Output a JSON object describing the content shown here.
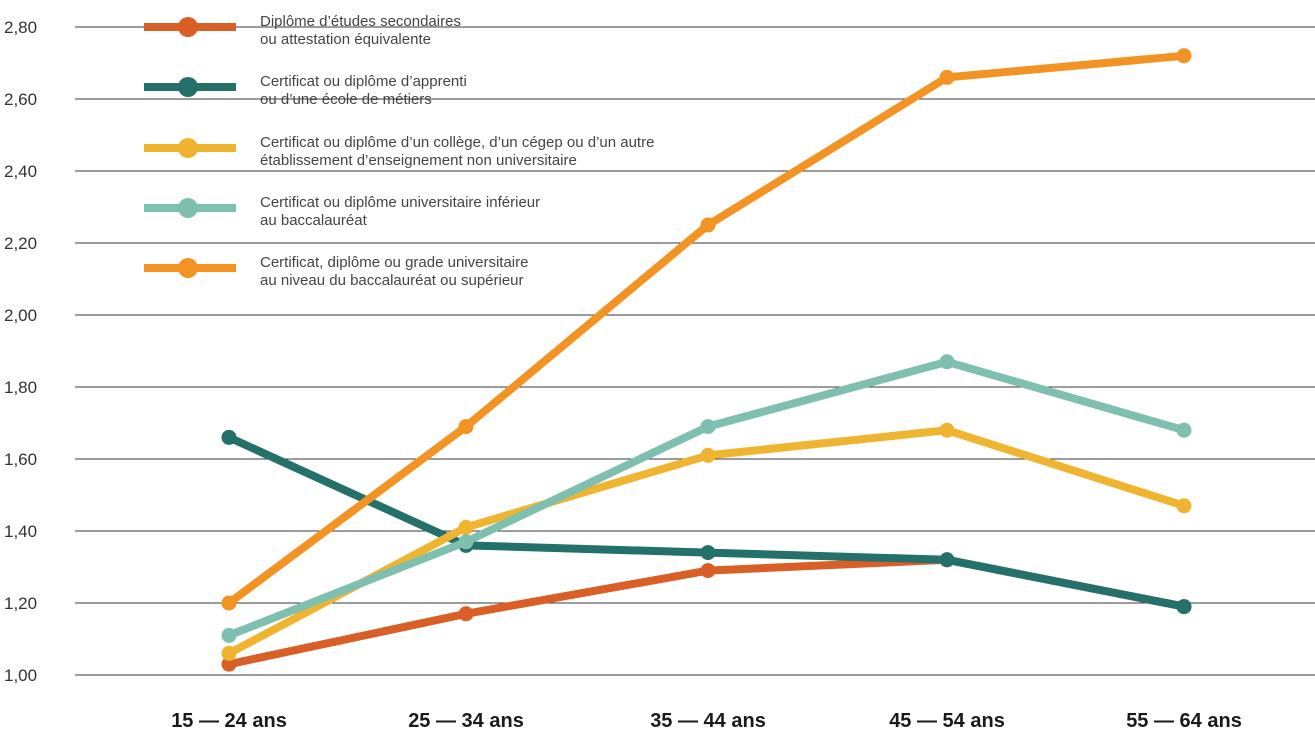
{
  "chart_data": {
    "type": "line",
    "title": "",
    "xlabel": "",
    "ylabel": "",
    "categories": [
      "15 — 24 ans",
      "25 — 34 ans",
      "35 — 44 ans",
      "45 — 54 ans",
      "55 — 64 ans"
    ],
    "y_ticks": [
      "1,00",
      "1,20",
      "1,40",
      "1,60",
      "1,80",
      "2,00",
      "2,20",
      "2,40",
      "2,60",
      "2,80"
    ],
    "ylim": [
      1.0,
      2.8
    ],
    "grid": "horizontal",
    "legend_position": "top-left",
    "series": [
      {
        "name_lines": [
          "Diplôme d’études secondaires",
          "ou attestation équivalente"
        ],
        "color": "#d95f27",
        "values": [
          1.03,
          1.17,
          1.29,
          1.32,
          1.19
        ]
      },
      {
        "name_lines": [
          "Certificat ou diplôme d’apprenti",
          "ou d’une école de métiers"
        ],
        "color": "#24706a",
        "values": [
          1.66,
          1.36,
          1.34,
          1.32,
          1.19
        ]
      },
      {
        "name_lines": [
          "Certificat ou diplôme d’un collège, d’un cégep ou d’un autre",
          "établissement d’enseignement non universitaire"
        ],
        "color": "#f0b530",
        "values": [
          1.06,
          1.41,
          1.61,
          1.68,
          1.47
        ]
      },
      {
        "name_lines": [
          "Certificat ou diplôme universitaire inférieur",
          "au baccalauréat"
        ],
        "color": "#7fbfb0",
        "values": [
          1.11,
          1.37,
          1.69,
          1.87,
          1.68
        ]
      },
      {
        "name_lines": [
          "Certificat, diplôme ou grade universitaire",
          "au niveau du baccalauréat ou supérieur"
        ],
        "color": "#f39323",
        "values": [
          1.2,
          1.69,
          2.25,
          2.66,
          2.72
        ]
      }
    ]
  }
}
